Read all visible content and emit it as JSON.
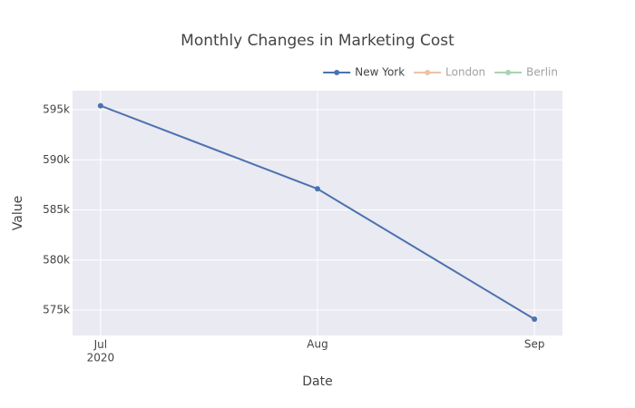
{
  "chart_data": {
    "type": "line",
    "title": "Monthly Changes in Marketing Cost",
    "x_label": "Date",
    "y_label": "Value",
    "x": [
      "2020-07-01",
      "2020-08-01",
      "2020-09-01"
    ],
    "series": [
      {
        "name": "New York",
        "color": "#4c72b0",
        "visible": true,
        "values": [
          595400,
          587100,
          574100
        ]
      },
      {
        "name": "London",
        "color": "#dd8452",
        "visible": false,
        "values": [
          null,
          null,
          null
        ]
      },
      {
        "name": "Berlin",
        "color": "#55a868",
        "visible": false,
        "values": [
          null,
          null,
          null
        ]
      }
    ],
    "xlim": [
      "2020-06-27",
      "2020-09-05"
    ],
    "xticks": [
      {
        "value": "2020-07-01",
        "label": "Jul\n2020"
      },
      {
        "value": "2020-08-01",
        "label": "Aug"
      },
      {
        "value": "2020-09-01",
        "label": "Sep"
      }
    ],
    "ylim": [
      572470,
      596900
    ],
    "yticks": [
      {
        "value": 575000,
        "label": "575k"
      },
      {
        "value": 580000,
        "label": "580k"
      },
      {
        "value": 585000,
        "label": "585k"
      },
      {
        "value": 590000,
        "label": "590k"
      },
      {
        "value": 595000,
        "label": "595k"
      }
    ],
    "grid": true,
    "legend": "top-right"
  }
}
